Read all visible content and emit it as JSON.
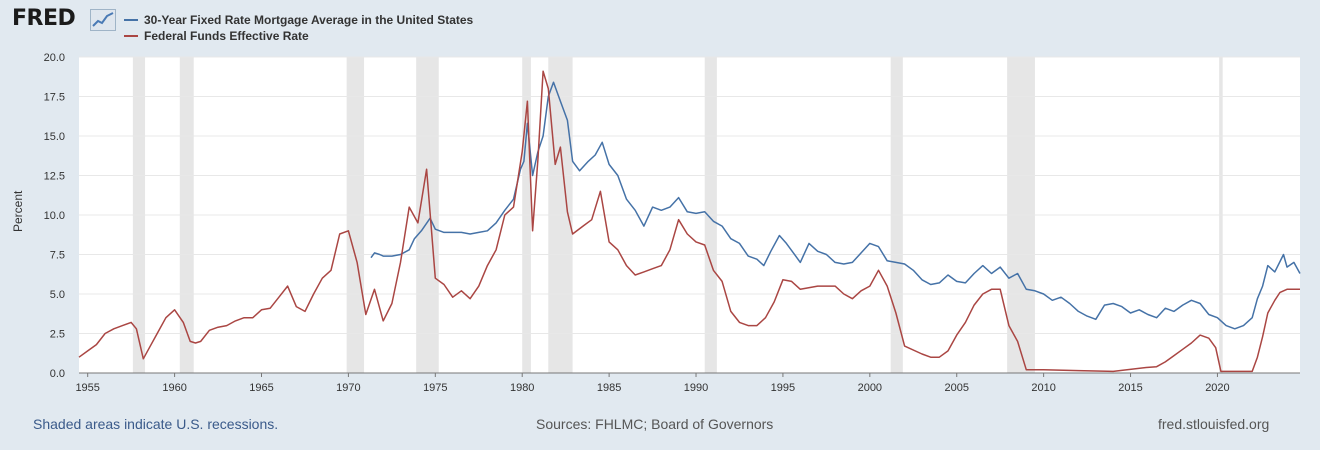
{
  "logo": {
    "text": "FRED"
  },
  "colors": {
    "mortgage": "#4572a7",
    "fedfunds": "#aa4643",
    "recession": "#e6e6e6",
    "plot_bg": "#ffffff",
    "page_bg": "#e1e9f0"
  },
  "footer": {
    "recession_note": "Shaded areas indicate U.S. recessions.",
    "sources": "Sources: FHLMC; Board of Governors",
    "site": "fred.stlouisfed.org"
  },
  "chart_data": {
    "type": "line",
    "title": "",
    "xlabel": "",
    "ylabel": "Percent",
    "xlim": [
      1954.5,
      2024.75
    ],
    "ylim": [
      0,
      20
    ],
    "grid": true,
    "legend_position": "top-left",
    "x_ticks": [
      "1955",
      "1960",
      "1965",
      "1970",
      "1975",
      "1980",
      "1985",
      "1990",
      "1995",
      "2000",
      "2005",
      "2010",
      "2015",
      "2020"
    ],
    "y_ticks": [
      "0.0",
      "2.5",
      "5.0",
      "7.5",
      "10.0",
      "12.5",
      "15.0",
      "17.5",
      "20.0"
    ],
    "recessions": [
      [
        1957.6,
        1958.3
      ],
      [
        1960.3,
        1961.1
      ],
      [
        1969.9,
        1970.9
      ],
      [
        1973.9,
        1975.2
      ],
      [
        1980.0,
        1980.5
      ],
      [
        1981.5,
        1982.9
      ],
      [
        1990.5,
        1991.2
      ],
      [
        2001.2,
        2001.9
      ],
      [
        2007.9,
        2009.5
      ],
      [
        2020.1,
        2020.3
      ]
    ],
    "series": [
      {
        "name": "30-Year Fixed Rate Mortgage Average in the United States",
        "x": [
          1971.3,
          1971.5,
          1971.8,
          1972.0,
          1972.5,
          1973.0,
          1973.5,
          1973.8,
          1974.2,
          1974.7,
          1975.0,
          1975.5,
          1976.0,
          1976.5,
          1977.0,
          1977.5,
          1978.0,
          1978.5,
          1979.0,
          1979.5,
          1979.9,
          1980.1,
          1980.3,
          1980.6,
          1980.9,
          1981.2,
          1981.5,
          1981.8,
          1982.2,
          1982.6,
          1982.9,
          1983.3,
          1983.8,
          1984.2,
          1984.6,
          1985.0,
          1985.5,
          1986.0,
          1986.5,
          1987.0,
          1987.5,
          1988.0,
          1988.5,
          1989.0,
          1989.5,
          1990.0,
          1990.5,
          1991.0,
          1991.5,
          1992.0,
          1992.5,
          1993.0,
          1993.5,
          1993.9,
          1994.3,
          1994.8,
          1995.2,
          1995.6,
          1996.0,
          1996.5,
          1997.0,
          1997.5,
          1998.0,
          1998.5,
          1999.0,
          1999.5,
          2000.0,
          2000.5,
          2001.0,
          2001.5,
          2002.0,
          2002.5,
          2003.0,
          2003.5,
          2004.0,
          2004.5,
          2005.0,
          2005.5,
          2006.0,
          2006.5,
          2007.0,
          2007.5,
          2008.0,
          2008.5,
          2009.0,
          2009.5,
          2010.0,
          2010.5,
          2011.0,
          2011.5,
          2012.0,
          2012.5,
          2013.0,
          2013.5,
          2014.0,
          2014.5,
          2015.0,
          2015.5,
          2016.0,
          2016.5,
          2017.0,
          2017.5,
          2018.0,
          2018.5,
          2019.0,
          2019.5,
          2020.0,
          2020.5,
          2021.0,
          2021.5,
          2022.0,
          2022.3,
          2022.6,
          2022.9,
          2023.3,
          2023.8,
          2024.0,
          2024.4,
          2024.75
        ],
        "values": [
          7.3,
          7.6,
          7.5,
          7.4,
          7.4,
          7.5,
          7.8,
          8.5,
          9.0,
          9.8,
          9.1,
          8.9,
          8.9,
          8.9,
          8.8,
          8.9,
          9.0,
          9.5,
          10.3,
          11.0,
          12.9,
          13.4,
          15.8,
          12.5,
          14.0,
          15.0,
          17.5,
          18.4,
          17.2,
          16.0,
          13.4,
          12.8,
          13.4,
          13.8,
          14.6,
          13.2,
          12.5,
          11.0,
          10.3,
          9.3,
          10.5,
          10.3,
          10.5,
          11.1,
          10.2,
          10.1,
          10.2,
          9.6,
          9.3,
          8.5,
          8.2,
          7.4,
          7.2,
          6.8,
          7.7,
          8.7,
          8.2,
          7.6,
          7.0,
          8.2,
          7.7,
          7.5,
          7.0,
          6.9,
          7.0,
          7.6,
          8.2,
          8.0,
          7.1,
          7.0,
          6.9,
          6.5,
          5.9,
          5.6,
          5.7,
          6.2,
          5.8,
          5.7,
          6.3,
          6.8,
          6.3,
          6.7,
          6.0,
          6.3,
          5.3,
          5.2,
          5.0,
          4.6,
          4.8,
          4.4,
          3.9,
          3.6,
          3.4,
          4.3,
          4.4,
          4.2,
          3.8,
          4.0,
          3.7,
          3.5,
          4.1,
          3.9,
          4.3,
          4.6,
          4.4,
          3.7,
          3.5,
          3.0,
          2.8,
          3.0,
          3.5,
          4.7,
          5.5,
          6.8,
          6.4,
          7.5,
          6.7,
          7.0,
          6.3
        ]
      },
      {
        "name": "Federal Funds Effective Rate",
        "x": [
          1954.5,
          1955.0,
          1955.5,
          1956.0,
          1956.5,
          1957.0,
          1957.5,
          1957.8,
          1958.2,
          1958.5,
          1959.0,
          1959.5,
          1960.0,
          1960.5,
          1960.9,
          1961.2,
          1961.5,
          1962.0,
          1962.5,
          1963.0,
          1963.5,
          1964.0,
          1964.5,
          1965.0,
          1965.5,
          1966.0,
          1966.5,
          1967.0,
          1967.5,
          1968.0,
          1968.5,
          1969.0,
          1969.5,
          1970.0,
          1970.5,
          1971.0,
          1971.5,
          1972.0,
          1972.5,
          1973.0,
          1973.5,
          1974.0,
          1974.5,
          1975.0,
          1975.5,
          1976.0,
          1976.5,
          1977.0,
          1977.5,
          1978.0,
          1978.5,
          1979.0,
          1979.5,
          1980.0,
          1980.3,
          1980.6,
          1980.9,
          1981.2,
          1981.5,
          1981.9,
          1982.2,
          1982.6,
          1982.9,
          1983.5,
          1984.0,
          1984.5,
          1985.0,
          1985.5,
          1986.0,
          1986.5,
          1987.0,
          1987.5,
          1988.0,
          1988.5,
          1989.0,
          1989.5,
          1990.0,
          1990.5,
          1991.0,
          1991.5,
          1992.0,
          1992.5,
          1993.0,
          1993.5,
          1994.0,
          1994.5,
          1995.0,
          1995.5,
          1996.0,
          1997.0,
          1998.0,
          1998.5,
          1999.0,
          1999.5,
          2000.0,
          2000.5,
          2001.0,
          2001.5,
          2002.0,
          2003.0,
          2003.5,
          2004.0,
          2004.5,
          2005.0,
          2005.5,
          2006.0,
          2006.5,
          2007.0,
          2007.5,
          2008.0,
          2008.5,
          2009.0,
          2010.0,
          2012.0,
          2014.0,
          2015.9,
          2016.5,
          2017.0,
          2017.5,
          2018.0,
          2018.5,
          2019.0,
          2019.5,
          2019.9,
          2020.2,
          2020.5,
          2021.0,
          2022.0,
          2022.3,
          2022.6,
          2022.9,
          2023.3,
          2023.6,
          2024.0,
          2024.75
        ],
        "values": [
          1.0,
          1.4,
          1.8,
          2.5,
          2.8,
          3.0,
          3.2,
          2.8,
          0.9,
          1.5,
          2.5,
          3.5,
          4.0,
          3.2,
          2.0,
          1.9,
          2.0,
          2.7,
          2.9,
          3.0,
          3.3,
          3.5,
          3.5,
          4.0,
          4.1,
          4.8,
          5.5,
          4.2,
          3.9,
          5.0,
          6.0,
          6.5,
          8.8,
          9.0,
          7.0,
          3.7,
          5.3,
          3.3,
          4.4,
          7.0,
          10.5,
          9.5,
          12.9,
          6.0,
          5.6,
          4.8,
          5.2,
          4.7,
          5.5,
          6.8,
          7.8,
          10.0,
          10.5,
          14.0,
          17.2,
          9.0,
          13.5,
          19.1,
          18.0,
          13.2,
          14.3,
          10.2,
          8.8,
          9.3,
          9.7,
          11.5,
          8.3,
          7.8,
          6.8,
          6.2,
          6.4,
          6.6,
          6.8,
          7.8,
          9.7,
          8.8,
          8.3,
          8.1,
          6.5,
          5.8,
          3.9,
          3.2,
          3.0,
          3.0,
          3.5,
          4.5,
          5.9,
          5.8,
          5.3,
          5.5,
          5.5,
          5.0,
          4.7,
          5.2,
          5.5,
          6.5,
          5.5,
          3.8,
          1.7,
          1.2,
          1.0,
          1.0,
          1.4,
          2.4,
          3.2,
          4.3,
          5.0,
          5.3,
          5.3,
          3.0,
          2.0,
          0.2,
          0.2,
          0.15,
          0.1,
          0.35,
          0.4,
          0.7,
          1.1,
          1.5,
          1.9,
          2.4,
          2.2,
          1.6,
          0.1,
          0.1,
          0.1,
          0.1,
          1.0,
          2.3,
          3.8,
          4.6,
          5.1,
          5.3,
          5.3
        ]
      }
    ]
  }
}
